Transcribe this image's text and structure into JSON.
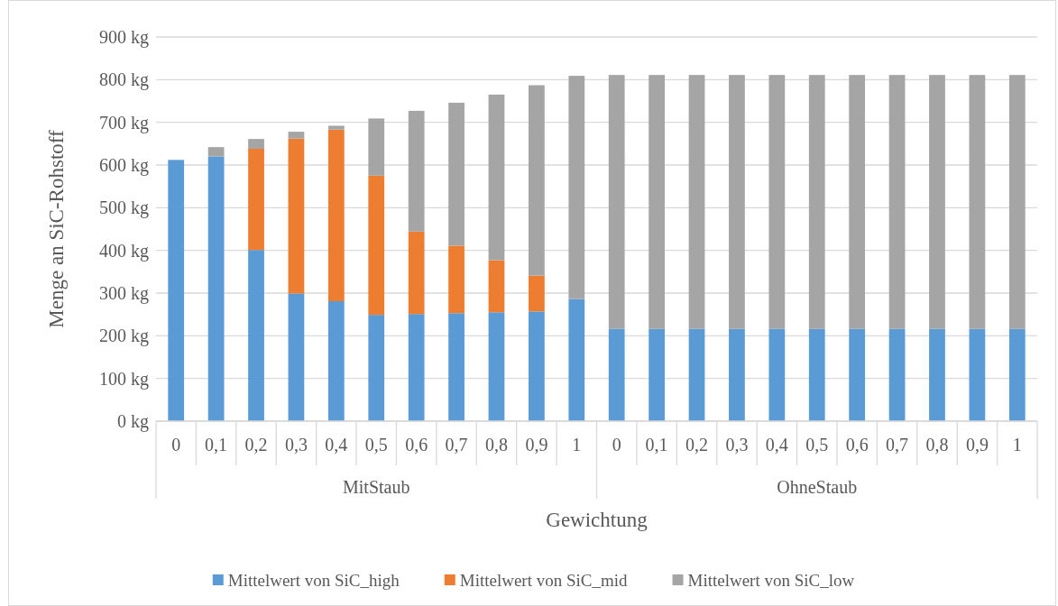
{
  "chart_data": {
    "type": "bar",
    "stacked": true,
    "categories": [
      "0",
      "0,1",
      "0,2",
      "0,3",
      "0,4",
      "0,5",
      "0,6",
      "0,7",
      "0,8",
      "0,9",
      "1",
      "0",
      "0,1",
      "0,2",
      "0,3",
      "0,4",
      "0,5",
      "0,6",
      "0,7",
      "0,8",
      "0,9",
      "1"
    ],
    "series": [
      {
        "name": "Mittelwert von SiC_high",
        "color": "#5b9bd5",
        "values": [
          612,
          620,
          401,
          299,
          281,
          249,
          251,
          253,
          255,
          257,
          286,
          216,
          216,
          216,
          216,
          216,
          216,
          216,
          216,
          216,
          216,
          216
        ]
      },
      {
        "name": "Mittelwert von SiC_mid",
        "color": "#ed7d31",
        "values": [
          null,
          null,
          237,
          363,
          402,
          326,
          193,
          158,
          122,
          84,
          null,
          null,
          null,
          null,
          null,
          null,
          null,
          null,
          null,
          null,
          null,
          null
        ]
      },
      {
        "name": "Mittelwert von SiC_low",
        "color": "#a5a5a5",
        "values": [
          null,
          22,
          23,
          16,
          9,
          134,
          283,
          335,
          388,
          446,
          523,
          595,
          595,
          595,
          595,
          595,
          595,
          595,
          595,
          595,
          595,
          595
        ]
      }
    ],
    "ylim": [
      0,
      900
    ],
    "yticks": [
      {
        "value": 0,
        "label": "0 kg"
      },
      {
        "value": 100,
        "label": "100 kg"
      },
      {
        "value": 200,
        "label": "200 kg"
      },
      {
        "value": 300,
        "label": "300 kg"
      },
      {
        "value": 400,
        "label": "400 kg"
      },
      {
        "value": 500,
        "label": "500 kg"
      },
      {
        "value": 600,
        "label": "600 kg"
      },
      {
        "value": 700,
        "label": "700 kg"
      },
      {
        "value": 800,
        "label": "800 kg"
      },
      {
        "value": 900,
        "label": "900 kg"
      }
    ],
    "grid": "y",
    "legend": "bottom",
    "xlabel": "Gewichtung",
    "ylabel": "Menge an SiC-Rohstoff",
    "annotations": [
      "MitStaub",
      "OhneStaub"
    ]
  }
}
